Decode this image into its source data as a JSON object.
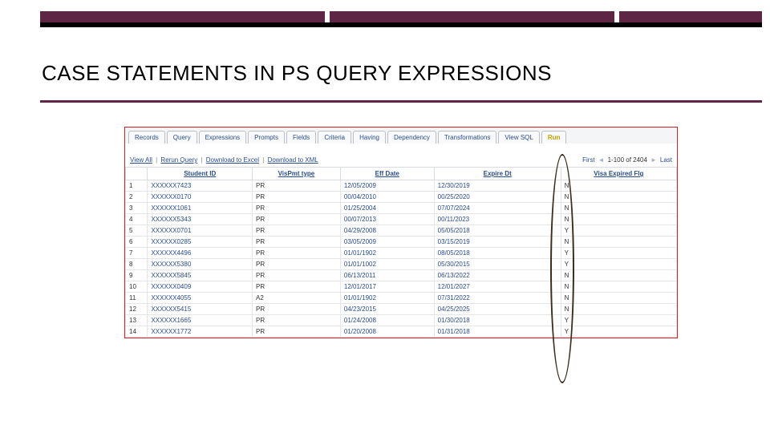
{
  "slide": {
    "title": "CASE STATEMENTS IN PS QUERY EXPRESSIONS",
    "title_color": "#000000",
    "seg_colors": [
      "#5e2644",
      "#5e2644",
      "#5e2644"
    ],
    "title_bar_bg": "#5e2644",
    "title_bar_border": "#000000"
  },
  "tabs": [
    {
      "label": "Records"
    },
    {
      "label": "Query"
    },
    {
      "label": "Expressions"
    },
    {
      "label": "Prompts"
    },
    {
      "label": "Fields"
    },
    {
      "label": "Criteria"
    },
    {
      "label": "Having"
    },
    {
      "label": "Dependency"
    },
    {
      "label": "Transformations"
    },
    {
      "label": "View SQL"
    },
    {
      "label": "Run",
      "run": true
    }
  ],
  "links": {
    "view_all": "View All",
    "rerun": "Rerun Query",
    "dl_excel": "Download to Excel",
    "dl_xml": "Download to XML",
    "first": "First",
    "page": "1-100 of 2404",
    "last": "Last"
  },
  "columns": [
    "",
    "Student ID",
    "VisPmt type",
    "Eff Date",
    "Expire Dt",
    "Visa Expired Flg"
  ],
  "rows": [
    {
      "n": "1",
      "id": "XXXXXX7423",
      "type": "PR",
      "eff": "12/05/2009",
      "exp": "12/30/2019",
      "flag": "N"
    },
    {
      "n": "2",
      "id": "XXXXXX0170",
      "type": "PR",
      "eff": "00/04/2010",
      "exp": "00/25/2020",
      "flag": "N"
    },
    {
      "n": "3",
      "id": "XXXXXX1061",
      "type": "PR",
      "eff": "01/25/2004",
      "exp": "07/07/2024",
      "flag": "N"
    },
    {
      "n": "4",
      "id": "XXXXXX5343",
      "type": "PR",
      "eff": "00/07/2013",
      "exp": "00/11/2023",
      "flag": "N"
    },
    {
      "n": "5",
      "id": "XXXXXX0701",
      "type": "PR",
      "eff": "04/29/2008",
      "exp": "05/05/2018",
      "flag": "Y"
    },
    {
      "n": "6",
      "id": "XXXXXX0285",
      "type": "PR",
      "eff": "03/05/2009",
      "exp": "03/15/2019",
      "flag": "N"
    },
    {
      "n": "7",
      "id": "XXXXXX4496",
      "type": "PR",
      "eff": "01/01/1902",
      "exp": "08/05/2018",
      "flag": "Y"
    },
    {
      "n": "8",
      "id": "XXXXXX5380",
      "type": "PR",
      "eff": "01/01/1002",
      "exp": "05/30/2015",
      "flag": "Y"
    },
    {
      "n": "9",
      "id": "XXXXXX5845",
      "type": "PR",
      "eff": "06/13/2011",
      "exp": "06/13/2022",
      "flag": "N"
    },
    {
      "n": "10",
      "id": "XXXXXX0409",
      "type": "PR",
      "eff": "12/01/2017",
      "exp": "12/01/2027",
      "flag": "N"
    },
    {
      "n": "11",
      "id": "XXXXXX4055",
      "type": "A2",
      "eff": "01/01/1902",
      "exp": "07/31/2022",
      "flag": "N"
    },
    {
      "n": "12",
      "id": "XXXXXX5415",
      "type": "PR",
      "eff": "04/23/2015",
      "exp": "04/25/2025",
      "flag": "N"
    },
    {
      "n": "13",
      "id": "XXXXXX1665",
      "type": "PR",
      "eff": "01/24/2008",
      "exp": "01/30/2018",
      "flag": "Y"
    },
    {
      "n": "14",
      "id": "XXXXXX1772",
      "type": "PR",
      "eff": "01/20/2008",
      "exp": "01/31/2018",
      "flag": "Y"
    }
  ]
}
